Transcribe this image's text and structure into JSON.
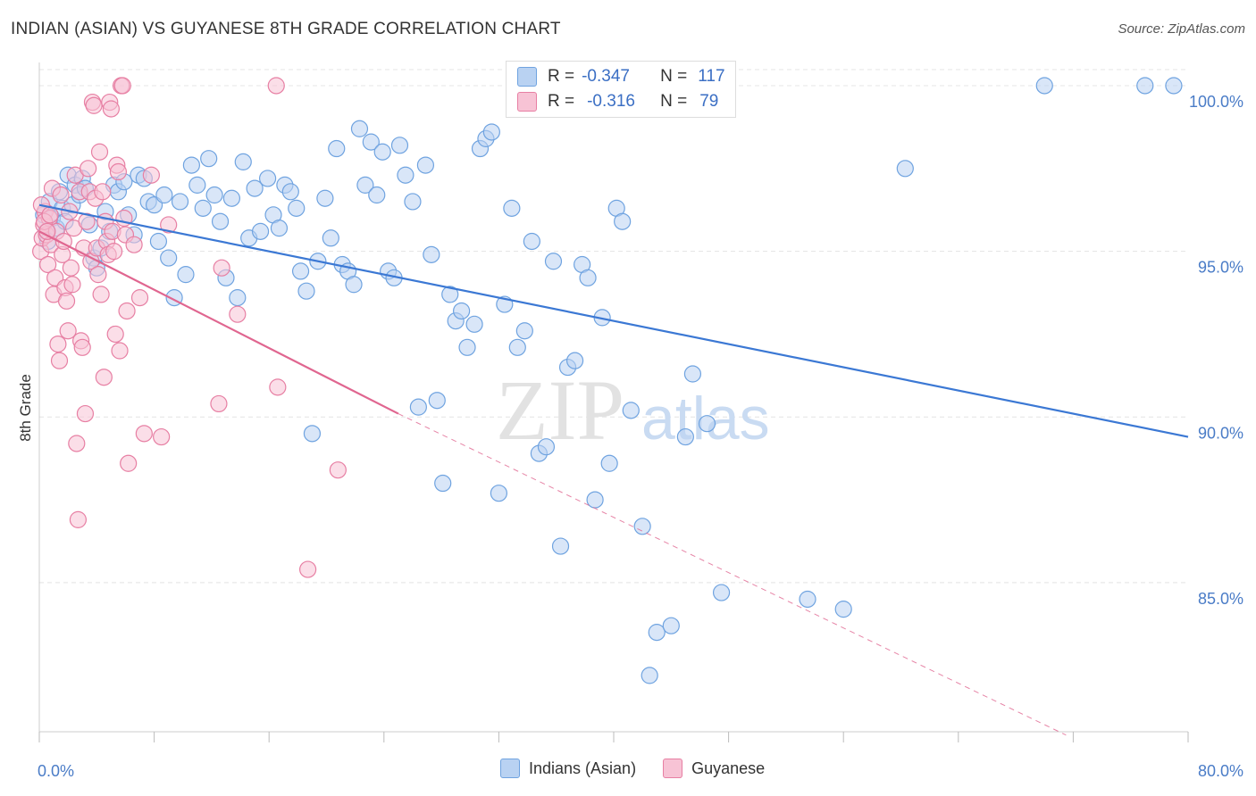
{
  "title": "INDIAN (ASIAN) VS GUYANESE 8TH GRADE CORRELATION CHART",
  "source": "Source: ZipAtlas.com",
  "watermark": {
    "zip": "ZIP",
    "atlas": "atlas"
  },
  "stats": {
    "rows": [
      {
        "r_label": "R =",
        "r_value": "-0.347",
        "n_label": "N =",
        "n_value": "117",
        "color": "#6fa3e0",
        "fill": "#b9d2f2"
      },
      {
        "r_label": "R =",
        "r_value": "-0.316",
        "n_label": "N =",
        "n_value": "79",
        "color": "#e77fa3",
        "fill": "#f7c3d5"
      }
    ]
  },
  "legend": [
    {
      "label": "Indians (Asian)",
      "fill": "#b9d2f2",
      "stroke": "#6fa3e0"
    },
    {
      "label": "Guyanese",
      "fill": "#f7c3d5",
      "stroke": "#e77fa3"
    }
  ],
  "chart_data": {
    "type": "scatter",
    "xlabel": "",
    "ylabel": "8th Grade",
    "xlim": [
      0,
      80
    ],
    "ylim": [
      80.5,
      100.7
    ],
    "x_tick_labels": [
      "0.0%",
      "80.0%"
    ],
    "y_ticks": [
      85,
      90,
      95,
      100
    ],
    "y_tick_labels": [
      "85.0%",
      "90.0%",
      "95.0%",
      "100.0%"
    ],
    "grid": true,
    "series": [
      {
        "name": "Indians (Asian)",
        "stroke": "#6fa3e0",
        "fill": "#b9d2f2",
        "line_color": "#3b78d4",
        "trend": {
          "x": [
            0,
            80
          ],
          "y": [
            96.4,
            89.4
          ]
        },
        "points": [
          [
            0.3,
            96.1
          ],
          [
            0.5,
            95.6
          ],
          [
            0.7,
            96.5
          ],
          [
            0.9,
            96.0
          ],
          [
            1.2,
            95.7
          ],
          [
            1.4,
            96.8
          ],
          [
            1.6,
            96.3
          ],
          [
            1.8,
            95.9
          ],
          [
            2.0,
            97.3
          ],
          [
            2.3,
            96.4
          ],
          [
            2.5,
            97.0
          ],
          [
            2.8,
            96.7
          ],
          [
            3.0,
            97.2
          ],
          [
            3.2,
            96.9
          ],
          [
            3.5,
            95.8
          ],
          [
            3.8,
            94.8
          ],
          [
            4.0,
            94.5
          ],
          [
            4.3,
            95.1
          ],
          [
            4.6,
            96.2
          ],
          [
            4.9,
            95.6
          ],
          [
            5.2,
            97.0
          ],
          [
            5.5,
            96.8
          ],
          [
            5.9,
            97.1
          ],
          [
            6.2,
            96.1
          ],
          [
            6.6,
            95.5
          ],
          [
            6.9,
            97.3
          ],
          [
            7.3,
            97.2
          ],
          [
            7.6,
            96.5
          ],
          [
            8.0,
            96.4
          ],
          [
            8.3,
            95.3
          ],
          [
            8.7,
            96.7
          ],
          [
            9.0,
            94.8
          ],
          [
            9.4,
            93.6
          ],
          [
            9.8,
            96.5
          ],
          [
            10.2,
            94.3
          ],
          [
            10.6,
            97.6
          ],
          [
            11.0,
            97.0
          ],
          [
            11.4,
            96.3
          ],
          [
            11.8,
            97.8
          ],
          [
            12.2,
            96.7
          ],
          [
            12.6,
            95.9
          ],
          [
            13.0,
            94.2
          ],
          [
            13.4,
            96.6
          ],
          [
            13.8,
            93.6
          ],
          [
            14.2,
            97.7
          ],
          [
            14.6,
            95.4
          ],
          [
            15.0,
            96.9
          ],
          [
            15.4,
            95.6
          ],
          [
            15.9,
            97.2
          ],
          [
            16.3,
            96.1
          ],
          [
            16.7,
            95.7
          ],
          [
            17.1,
            97.0
          ],
          [
            17.5,
            96.8
          ],
          [
            17.9,
            96.3
          ],
          [
            18.2,
            94.4
          ],
          [
            18.6,
            93.8
          ],
          [
            19.0,
            89.5
          ],
          [
            19.4,
            94.7
          ],
          [
            19.9,
            96.6
          ],
          [
            20.3,
            95.4
          ],
          [
            20.7,
            98.1
          ],
          [
            21.1,
            94.6
          ],
          [
            21.5,
            94.4
          ],
          [
            21.9,
            94.0
          ],
          [
            22.3,
            98.7
          ],
          [
            22.7,
            97.0
          ],
          [
            23.1,
            98.3
          ],
          [
            23.5,
            96.7
          ],
          [
            23.9,
            98.0
          ],
          [
            24.3,
            94.4
          ],
          [
            24.7,
            94.2
          ],
          [
            25.1,
            98.2
          ],
          [
            25.5,
            97.3
          ],
          [
            26.0,
            96.5
          ],
          [
            26.4,
            90.3
          ],
          [
            26.9,
            97.6
          ],
          [
            27.3,
            94.9
          ],
          [
            27.7,
            90.5
          ],
          [
            28.1,
            88.0
          ],
          [
            28.6,
            93.7
          ],
          [
            29.0,
            92.9
          ],
          [
            29.4,
            93.2
          ],
          [
            29.8,
            92.1
          ],
          [
            30.3,
            92.8
          ],
          [
            30.7,
            98.1
          ],
          [
            31.1,
            98.4
          ],
          [
            31.5,
            98.6
          ],
          [
            32.0,
            87.7
          ],
          [
            32.4,
            93.4
          ],
          [
            32.9,
            96.3
          ],
          [
            33.3,
            92.1
          ],
          [
            33.8,
            92.6
          ],
          [
            34.3,
            95.3
          ],
          [
            34.8,
            88.9
          ],
          [
            35.3,
            89.1
          ],
          [
            35.8,
            94.7
          ],
          [
            36.3,
            86.1
          ],
          [
            36.8,
            91.5
          ],
          [
            37.3,
            91.7
          ],
          [
            37.8,
            94.6
          ],
          [
            38.2,
            94.2
          ],
          [
            38.7,
            87.5
          ],
          [
            39.2,
            93.0
          ],
          [
            39.7,
            88.6
          ],
          [
            40.2,
            96.3
          ],
          [
            40.6,
            95.9
          ],
          [
            41.2,
            90.2
          ],
          [
            42.0,
            86.7
          ],
          [
            42.5,
            82.2
          ],
          [
            43.0,
            83.5
          ],
          [
            44.0,
            83.7
          ],
          [
            45.0,
            89.4
          ],
          [
            45.5,
            91.3
          ],
          [
            46.5,
            89.8
          ],
          [
            47.5,
            84.7
          ],
          [
            53.5,
            84.5
          ],
          [
            56.0,
            84.2
          ],
          [
            60.3,
            97.5
          ],
          [
            70.0,
            100.0
          ],
          [
            77.0,
            100.0
          ],
          [
            79.0,
            100.0
          ],
          [
            0.6,
            95.3
          ]
        ]
      },
      {
        "name": "Guyanese",
        "stroke": "#e77fa3",
        "fill": "#f7c3d5",
        "line_color": "#e06690",
        "trend": {
          "x": [
            0,
            25
          ],
          "y": [
            95.6,
            90.1
          ]
        },
        "trend_ext": {
          "x": [
            25,
            71.5
          ],
          "y": [
            90.1,
            80.4
          ]
        },
        "points": [
          [
            0.1,
            95.0
          ],
          [
            0.2,
            95.4
          ],
          [
            0.3,
            95.8
          ],
          [
            0.4,
            96.2
          ],
          [
            0.5,
            95.5
          ],
          [
            0.6,
            94.6
          ],
          [
            0.7,
            96.0
          ],
          [
            0.8,
            95.2
          ],
          [
            0.9,
            96.9
          ],
          [
            1.0,
            93.7
          ],
          [
            1.1,
            94.2
          ],
          [
            1.2,
            95.6
          ],
          [
            1.3,
            92.2
          ],
          [
            1.4,
            91.7
          ],
          [
            1.5,
            96.7
          ],
          [
            1.6,
            94.9
          ],
          [
            1.7,
            95.3
          ],
          [
            1.8,
            93.9
          ],
          [
            1.9,
            93.5
          ],
          [
            2.0,
            92.6
          ],
          [
            2.1,
            96.2
          ],
          [
            2.2,
            94.5
          ],
          [
            2.3,
            94.0
          ],
          [
            2.4,
            95.7
          ],
          [
            2.5,
            97.3
          ],
          [
            2.6,
            89.2
          ],
          [
            2.7,
            86.9
          ],
          [
            2.8,
            96.8
          ],
          [
            2.9,
            92.3
          ],
          [
            3.0,
            92.1
          ],
          [
            3.1,
            95.1
          ],
          [
            3.2,
            90.1
          ],
          [
            3.3,
            95.9
          ],
          [
            3.4,
            97.5
          ],
          [
            3.5,
            96.8
          ],
          [
            3.6,
            94.7
          ],
          [
            3.7,
            99.5
          ],
          [
            3.8,
            99.4
          ],
          [
            3.9,
            96.6
          ],
          [
            4.0,
            95.1
          ],
          [
            4.1,
            94.3
          ],
          [
            4.2,
            98.0
          ],
          [
            4.3,
            93.7
          ],
          [
            4.4,
            96.8
          ],
          [
            4.5,
            91.2
          ],
          [
            4.6,
            95.9
          ],
          [
            4.7,
            95.3
          ],
          [
            4.8,
            94.9
          ],
          [
            4.9,
            99.5
          ],
          [
            5.0,
            99.3
          ],
          [
            5.1,
            95.6
          ],
          [
            5.2,
            95.0
          ],
          [
            5.3,
            92.5
          ],
          [
            5.4,
            97.6
          ],
          [
            5.5,
            97.4
          ],
          [
            5.6,
            92.0
          ],
          [
            5.7,
            100.0
          ],
          [
            5.8,
            100.0
          ],
          [
            5.9,
            96.0
          ],
          [
            6.0,
            95.5
          ],
          [
            6.1,
            93.2
          ],
          [
            6.2,
            88.6
          ],
          [
            6.6,
            95.2
          ],
          [
            7.0,
            93.6
          ],
          [
            7.3,
            89.5
          ],
          [
            7.8,
            97.3
          ],
          [
            8.5,
            89.4
          ],
          [
            9.0,
            95.8
          ],
          [
            12.5,
            90.4
          ],
          [
            12.7,
            94.5
          ],
          [
            13.8,
            93.1
          ],
          [
            16.5,
            100.0
          ],
          [
            16.6,
            90.9
          ],
          [
            18.7,
            85.4
          ],
          [
            20.8,
            88.4
          ],
          [
            0.15,
            96.4
          ],
          [
            0.35,
            95.9
          ],
          [
            0.55,
            95.6
          ],
          [
            0.75,
            96.1
          ]
        ]
      }
    ]
  }
}
